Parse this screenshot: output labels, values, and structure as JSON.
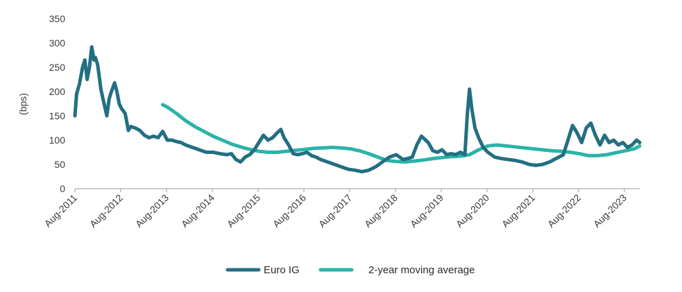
{
  "chart_data": {
    "type": "line",
    "title": "",
    "xlabel": "",
    "ylabel": "(bps)",
    "ylim": [
      0,
      350
    ],
    "yticks": [
      0,
      50,
      100,
      150,
      200,
      250,
      300,
      350
    ],
    "xlim": [
      2011.583,
      2023.917
    ],
    "xticks": [
      {
        "label": "Aug-2011",
        "value": 2011.583
      },
      {
        "label": "Aug-2012",
        "value": 2012.583
      },
      {
        "label": "Aug-2013",
        "value": 2013.583
      },
      {
        "label": "Aug-2014",
        "value": 2014.583
      },
      {
        "label": "Aug-2015",
        "value": 2015.583
      },
      {
        "label": "Aug-2016",
        "value": 2016.583
      },
      {
        "label": "Aug-2017",
        "value": 2017.583
      },
      {
        "label": "Aug-2018",
        "value": 2018.583
      },
      {
        "label": "Aug-2019",
        "value": 2019.583
      },
      {
        "label": "Aug-2020",
        "value": 2020.583
      },
      {
        "label": "Aug-2021",
        "value": 2021.583
      },
      {
        "label": "Aug-2022",
        "value": 2022.583
      },
      {
        "label": "Aug-2023",
        "value": 2023.583
      }
    ],
    "series": [
      {
        "name": "Euro IG",
        "color": "#236F82",
        "x": [
          2011.583,
          2011.62,
          2011.68,
          2011.75,
          2011.8,
          2011.85,
          2011.9,
          2011.95,
          2012.0,
          2012.03,
          2012.08,
          2012.15,
          2012.22,
          2012.28,
          2012.33,
          2012.38,
          2012.45,
          2012.5,
          2012.55,
          2012.6,
          2012.68,
          2012.75,
          2012.8,
          2012.9,
          2013.0,
          2013.1,
          2013.2,
          2013.3,
          2013.4,
          2013.5,
          2013.6,
          2013.7,
          2013.8,
          2013.9,
          2014.0,
          2014.15,
          2014.3,
          2014.45,
          2014.6,
          2014.75,
          2014.9,
          2015.0,
          2015.1,
          2015.2,
          2015.3,
          2015.4,
          2015.5,
          2015.6,
          2015.7,
          2015.8,
          2015.9,
          2016.0,
          2016.08,
          2016.15,
          2016.25,
          2016.35,
          2016.45,
          2016.55,
          2016.65,
          2016.75,
          2016.85,
          2016.95,
          2017.1,
          2017.25,
          2017.4,
          2017.55,
          2017.7,
          2017.85,
          2018.0,
          2018.15,
          2018.3,
          2018.45,
          2018.6,
          2018.75,
          2018.85,
          2018.95,
          2019.05,
          2019.15,
          2019.3,
          2019.4,
          2019.5,
          2019.6,
          2019.7,
          2019.8,
          2019.9,
          2020.0,
          2020.1,
          2020.15,
          2020.2,
          2020.25,
          2020.32,
          2020.4,
          2020.5,
          2020.6,
          2020.75,
          2020.9,
          2021.05,
          2021.2,
          2021.35,
          2021.5,
          2021.65,
          2021.8,
          2021.95,
          2022.05,
          2022.15,
          2022.25,
          2022.35,
          2022.45,
          2022.55,
          2022.65,
          2022.75,
          2022.85,
          2022.95,
          2023.05,
          2023.15,
          2023.25,
          2023.35,
          2023.45,
          2023.55,
          2023.65,
          2023.75,
          2023.85,
          2023.917
        ],
        "values": [
          150,
          195,
          215,
          250,
          265,
          225,
          250,
          292,
          265,
          270,
          255,
          205,
          175,
          150,
          185,
          200,
          218,
          200,
          175,
          165,
          155,
          120,
          128,
          125,
          120,
          110,
          105,
          108,
          105,
          118,
          100,
          100,
          97,
          95,
          90,
          85,
          80,
          75,
          75,
          72,
          70,
          72,
          60,
          55,
          65,
          70,
          80,
          95,
          110,
          100,
          105,
          115,
          122,
          105,
          90,
          72,
          70,
          72,
          75,
          68,
          65,
          60,
          55,
          50,
          45,
          40,
          38,
          35,
          38,
          45,
          55,
          65,
          70,
          60,
          62,
          65,
          90,
          108,
          95,
          78,
          75,
          80,
          70,
          72,
          70,
          75,
          70,
          150,
          205,
          165,
          125,
          105,
          85,
          75,
          65,
          62,
          60,
          58,
          55,
          50,
          48,
          50,
          55,
          60,
          65,
          70,
          100,
          130,
          115,
          95,
          125,
          135,
          110,
          90,
          110,
          95,
          100,
          90,
          95,
          85,
          90,
          100,
          95
        ]
      },
      {
        "name": "2-year moving average",
        "color": "#2BB3A8",
        "x": [
          2013.5,
          2013.6,
          2013.8,
          2014.0,
          2014.2,
          2014.4,
          2014.6,
          2014.8,
          2015.0,
          2015.2,
          2015.4,
          2015.6,
          2015.8,
          2016.0,
          2016.2,
          2016.4,
          2016.6,
          2016.8,
          2017.0,
          2017.2,
          2017.4,
          2017.6,
          2017.8,
          2018.0,
          2018.2,
          2018.4,
          2018.6,
          2018.8,
          2019.0,
          2019.2,
          2019.4,
          2019.6,
          2019.8,
          2020.0,
          2020.2,
          2020.4,
          2020.6,
          2020.8,
          2021.0,
          2021.2,
          2021.4,
          2021.6,
          2021.8,
          2022.0,
          2022.2,
          2022.4,
          2022.6,
          2022.8,
          2023.0,
          2023.2,
          2023.4,
          2023.6,
          2023.8,
          2023.917
        ],
        "values": [
          173,
          168,
          155,
          140,
          128,
          118,
          108,
          100,
          92,
          86,
          81,
          77,
          75,
          75,
          77,
          79,
          81,
          83,
          84,
          85,
          84,
          82,
          78,
          72,
          65,
          58,
          56,
          55,
          57,
          59,
          62,
          64,
          66,
          67,
          70,
          80,
          88,
          90,
          88,
          86,
          84,
          82,
          80,
          78,
          77,
          75,
          72,
          68,
          68,
          70,
          74,
          78,
          82,
          88
        ]
      }
    ],
    "legend": [
      "Euro IG",
      "2-year moving average"
    ],
    "legend_position": "bottom-center",
    "grid": false
  }
}
